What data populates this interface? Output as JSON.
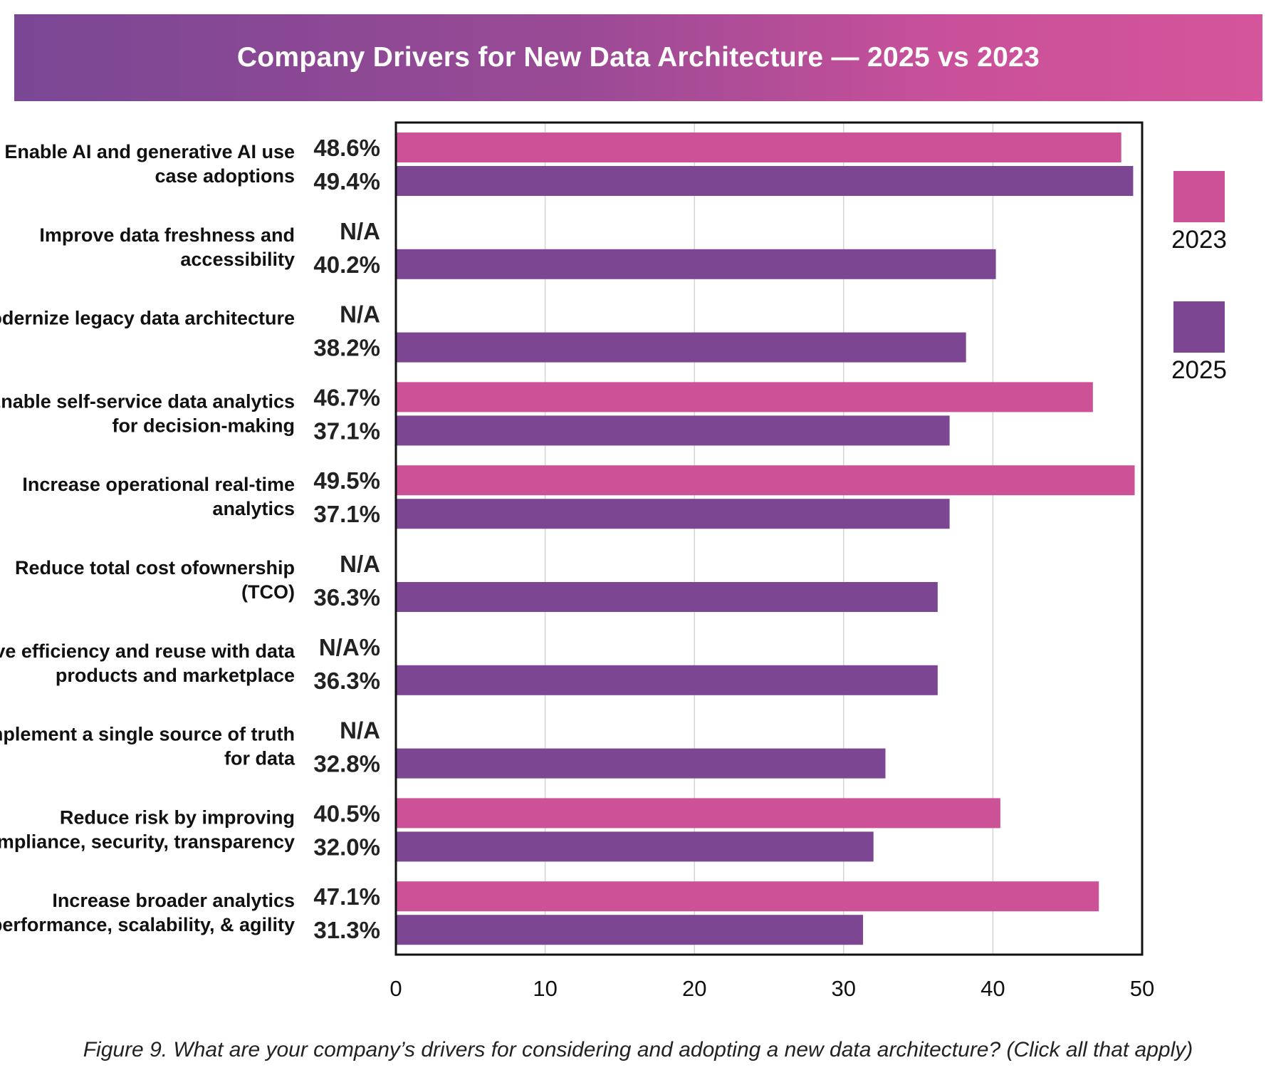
{
  "chart_data": {
    "type": "bar",
    "orientation": "horizontal",
    "title": "Company Drivers for New Data Architecture  — 2025 vs 2023",
    "caption": "Figure 9. What are your company’s drivers for considering and adopting a new data architecture?  (Click all that apply)",
    "xlim": [
      0,
      50
    ],
    "xticks": [
      "0",
      "10",
      "20",
      "30",
      "40",
      "50"
    ],
    "grid": true,
    "legend_position": "right",
    "colors": {
      "2023": "#cd5197",
      "2025": "#7c4693"
    },
    "series": [
      {
        "name": "2023",
        "values": [
          48.6,
          null,
          null,
          46.7,
          49.5,
          null,
          null,
          null,
          40.5,
          47.1
        ]
      },
      {
        "name": "2025",
        "values": [
          49.4,
          40.2,
          38.2,
          37.1,
          37.1,
          36.3,
          36.3,
          32.8,
          32.0,
          31.3
        ]
      }
    ],
    "categories": [
      {
        "lines": [
          "Enable AI and generative AI use",
          "case adoptions"
        ],
        "label_2023": "48.6%",
        "label_2025": "49.4%"
      },
      {
        "lines": [
          "Improve data freshness and",
          "accessibility"
        ],
        "label_2023": "N/A",
        "label_2025": "40.2%"
      },
      {
        "lines": [
          "Modernize legacy data architecture"
        ],
        "label_2023": "N/A",
        "label_2025": "38.2%"
      },
      {
        "lines": [
          "Enable self-service data analytics",
          "for decision-making"
        ],
        "label_2023": "46.7%",
        "label_2025": "37.1%"
      },
      {
        "lines": [
          "Increase operational real-time",
          "analytics"
        ],
        "label_2023": "49.5%",
        "label_2025": "37.1%"
      },
      {
        "lines": [
          "Reduce total cost ofownership",
          "(TCO)"
        ],
        "label_2023": "N/A",
        "label_2025": "36.3%"
      },
      {
        "lines": [
          "Drive efficiency and reuse with data",
          "products and marketplace"
        ],
        "label_2023": "N/A%",
        "label_2025": "36.3%"
      },
      {
        "lines": [
          "Implement a single source of truth",
          "for data"
        ],
        "label_2023": "N/A",
        "label_2025": "32.8%"
      },
      {
        "lines": [
          "Reduce risk by improving",
          "compliance, security, transparency"
        ],
        "label_2023": "40.5%",
        "label_2025": "32.0%"
      },
      {
        "lines": [
          "Increase broader analytics",
          "performance, scalability, & agility"
        ],
        "label_2023": "47.1%",
        "label_2025": "31.3%"
      }
    ]
  }
}
